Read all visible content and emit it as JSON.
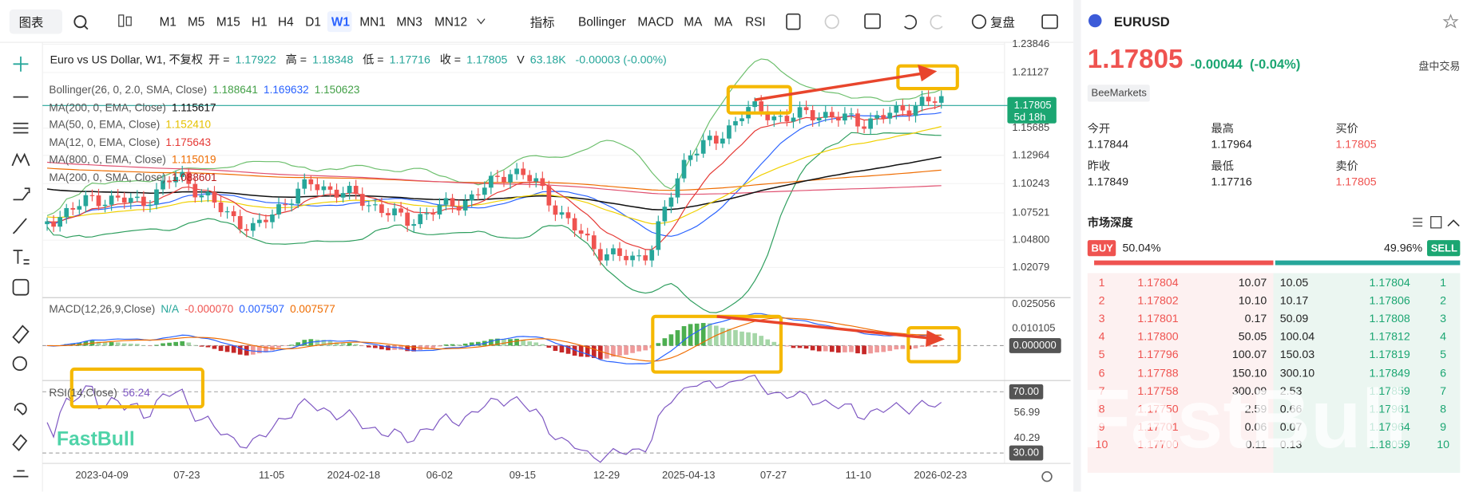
{
  "toolbar": {
    "chart_menu": "图表",
    "timeframes": [
      "M1",
      "M5",
      "M15",
      "H1",
      "H4",
      "D1",
      "W1",
      "MN1",
      "MN3",
      "MN12"
    ],
    "active_timeframe": "W1",
    "indicators_menu": "指标",
    "indicators": [
      "Bollinger",
      "MACD",
      "MA",
      "MA",
      "RSI"
    ],
    "replay": "复盘"
  },
  "legend": {
    "title": "Euro vs US Dollar, W1, 不复权",
    "ohlc": [
      {
        "label": "开 =",
        "value": "1.17922"
      },
      {
        "label": "高 =",
        "value": "1.18348"
      },
      {
        "label": "低 =",
        "value": "1.17716"
      },
      {
        "label": "收 =",
        "value": "1.17805"
      },
      {
        "label": "V",
        "value": "63.18K"
      }
    ],
    "change": "-0.00003 (-0.00%)"
  },
  "overlays": [
    {
      "label": "Bollinger(26, 0, 2.0, SMA, Close)",
      "values": [
        {
          "text": "1.188641",
          "color": "#43a047"
        },
        {
          "text": "1.169632",
          "color": "#2962ff"
        },
        {
          "text": "1.150623",
          "color": "#43a047"
        }
      ]
    },
    {
      "label": "MA(200, 0, EMA, Close)",
      "values": [
        {
          "text": "1.115617",
          "color": "#111111"
        }
      ]
    },
    {
      "label": "MA(50, 0, EMA, Close)",
      "values": [
        {
          "text": "1.152410",
          "color": "#e6c200"
        }
      ]
    },
    {
      "label": "MA(12, 0, EMA, Close)",
      "values": [
        {
          "text": "1.175643",
          "color": "#e53935"
        }
      ]
    },
    {
      "label": "MA(800, 0, EMA, Close)",
      "values": [
        {
          "text": "1.115019",
          "color": "#ef6c00"
        }
      ]
    },
    {
      "label": "MA(200, 0, SMA, Close)",
      "values": [
        {
          "text": "1.088601",
          "color": "#b71c1c"
        }
      ]
    }
  ],
  "price_axis": [
    "1.23846",
    "1.21127",
    "1.15685",
    "1.12964",
    "1.10243",
    "1.07521",
    "1.04800",
    "1.02079"
  ],
  "price_tag": {
    "price": "1.17805",
    "countdown": "5d 18h"
  },
  "macd": {
    "label": "MACD(12,26,9,Close)",
    "values": [
      {
        "text": "N/A",
        "color": "#26a69a"
      },
      {
        "text": "-0.000070",
        "color": "#ef5350"
      },
      {
        "text": "0.007507",
        "color": "#2962ff"
      },
      {
        "text": "0.007577",
        "color": "#ef6c00"
      }
    ],
    "axis": [
      "0.025056",
      "0.010105"
    ],
    "zero_tag": "0.000000"
  },
  "rsi": {
    "label": "RSI(14,Close)",
    "value": "56.24",
    "axis": [
      "56.99",
      "40.29"
    ],
    "tags": [
      "70.00",
      "30.00"
    ]
  },
  "x_axis": [
    "2023-04-09",
    "07-23",
    "11-05",
    "2024-02-18",
    "06-02",
    "09-15",
    "12-29",
    "2025-04-13",
    "07-27",
    "11-10",
    "2026-02-23"
  ],
  "watermark": "FastBull",
  "quote": {
    "symbol": "EURUSD",
    "price": "1.17805",
    "change": "-0.00044",
    "change_pct": "(-0.04%)",
    "status": "盘中交易",
    "broker": "BeeMarkets",
    "stats": [
      {
        "label": "今开",
        "value": "1.17844"
      },
      {
        "label": "最高",
        "value": "1.17964"
      },
      {
        "label": "买价",
        "value": "1.17805"
      },
      {
        "label": "昨收",
        "value": "1.17849"
      },
      {
        "label": "最低",
        "value": "1.17716"
      },
      {
        "label": "卖价",
        "value": "1.17805"
      }
    ]
  },
  "depth": {
    "title": "市场深度",
    "buy_label": "BUY",
    "buy_pct": "50.04%",
    "sell_pct": "49.96%",
    "sell_label": "SELL",
    "rows": [
      [
        "1",
        "1.17804",
        "10.07",
        "10.05",
        "1.17804",
        "1"
      ],
      [
        "2",
        "1.17802",
        "10.10",
        "10.17",
        "1.17806",
        "2"
      ],
      [
        "3",
        "1.17801",
        "0.17",
        "50.09",
        "1.17808",
        "3"
      ],
      [
        "4",
        "1.17800",
        "50.05",
        "100.04",
        "1.17812",
        "4"
      ],
      [
        "5",
        "1.17796",
        "100.07",
        "150.03",
        "1.17819",
        "5"
      ],
      [
        "6",
        "1.17788",
        "150.10",
        "300.10",
        "1.17849",
        "6"
      ],
      [
        "7",
        "1.17758",
        "300.09",
        "2.53",
        "1.17859",
        "7"
      ],
      [
        "8",
        "1.17750",
        "2.59",
        "0.66",
        "1.17961",
        "8"
      ],
      [
        "9",
        "1.17701",
        "0.06",
        "0.07",
        "1.17964",
        "9"
      ],
      [
        "10",
        "1.17700",
        "0.11",
        "0.13",
        "1.18059",
        "10"
      ]
    ]
  }
}
